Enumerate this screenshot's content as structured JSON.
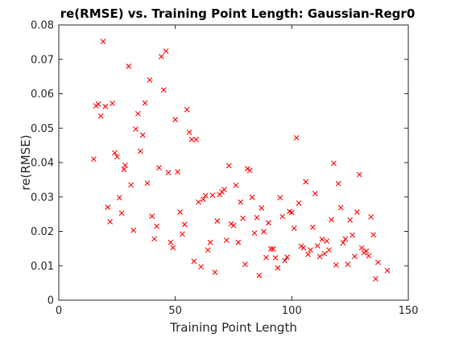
{
  "chart_data": {
    "type": "scatter",
    "title": "re(RMSE) vs. Training Point Length: Gaussian-Regr0",
    "xlabel": "Training Point Length",
    "ylabel": "re(RMSE)",
    "xlim": [
      0,
      150
    ],
    "ylim": [
      0,
      0.08
    ],
    "xticks": [
      0,
      50,
      100,
      150
    ],
    "yticks": [
      0,
      0.01,
      0.02,
      0.03,
      0.04,
      0.05,
      0.06,
      0.07,
      0.08
    ],
    "xtick_labels": [
      "0",
      "50",
      "100",
      "150"
    ],
    "ytick_labels": [
      "0",
      "0.01",
      "0.02",
      "0.03",
      "0.04",
      "0.05",
      "0.06",
      "0.07",
      "0.08"
    ],
    "grid": false,
    "legend": false,
    "marker": "x",
    "color": "#ff0000",
    "series": [
      {
        "points": [
          [
            15,
            0.041
          ],
          [
            16,
            0.0565
          ],
          [
            17,
            0.057
          ],
          [
            18,
            0.0535
          ],
          [
            19,
            0.0752
          ],
          [
            20,
            0.0563
          ],
          [
            21,
            0.027
          ],
          [
            22,
            0.0228
          ],
          [
            23,
            0.0572
          ],
          [
            24,
            0.0428
          ],
          [
            25,
            0.0417
          ],
          [
            26,
            0.0298
          ],
          [
            27,
            0.0253
          ],
          [
            28,
            0.038
          ],
          [
            28.5,
            0.0392
          ],
          [
            30,
            0.068
          ],
          [
            31,
            0.0335
          ],
          [
            32,
            0.0203
          ],
          [
            33,
            0.0497
          ],
          [
            34,
            0.0542
          ],
          [
            35,
            0.0433
          ],
          [
            36,
            0.048
          ],
          [
            37,
            0.0573
          ],
          [
            38,
            0.034
          ],
          [
            39,
            0.064
          ],
          [
            40,
            0.0244
          ],
          [
            41,
            0.0178
          ],
          [
            42,
            0.0215
          ],
          [
            43,
            0.0385
          ],
          [
            44,
            0.0708
          ],
          [
            45,
            0.0611
          ],
          [
            46,
            0.0724
          ],
          [
            47,
            0.0371
          ],
          [
            48,
            0.0168
          ],
          [
            49,
            0.0153
          ],
          [
            50,
            0.0525
          ],
          [
            51,
            0.0373
          ],
          [
            52,
            0.0256
          ],
          [
            53,
            0.0192
          ],
          [
            54,
            0.022
          ],
          [
            55,
            0.0554
          ],
          [
            56,
            0.0488
          ],
          [
            57,
            0.0467
          ],
          [
            58,
            0.0113
          ],
          [
            59,
            0.0467
          ],
          [
            60,
            0.0285
          ],
          [
            61,
            0.0097
          ],
          [
            62,
            0.0293
          ],
          [
            63,
            0.0304
          ],
          [
            64,
            0.0146
          ],
          [
            65,
            0.0168
          ],
          [
            66,
            0.0305
          ],
          [
            67,
            0.0081
          ],
          [
            68,
            0.023
          ],
          [
            69,
            0.0307
          ],
          [
            70,
            0.0315
          ],
          [
            71,
            0.0322
          ],
          [
            72,
            0.0174
          ],
          [
            73,
            0.0391
          ],
          [
            74,
            0.0222
          ],
          [
            75,
            0.0217
          ],
          [
            76,
            0.0334
          ],
          [
            77,
            0.0168
          ],
          [
            78,
            0.0285
          ],
          [
            79,
            0.0238
          ],
          [
            80,
            0.0104
          ],
          [
            81,
            0.0382
          ],
          [
            82,
            0.0377
          ],
          [
            83,
            0.0299
          ],
          [
            84,
            0.0195
          ],
          [
            85,
            0.024
          ],
          [
            86,
            0.0072
          ],
          [
            87,
            0.0268
          ],
          [
            88,
            0.0199
          ],
          [
            89,
            0.0124
          ],
          [
            90,
            0.0225
          ],
          [
            91,
            0.0149
          ],
          [
            92,
            0.0149
          ],
          [
            93,
            0.0123
          ],
          [
            94,
            0.0094
          ],
          [
            95,
            0.0298
          ],
          [
            96,
            0.0243
          ],
          [
            97,
            0.0115
          ],
          [
            98,
            0.0125
          ],
          [
            99,
            0.0258
          ],
          [
            100,
            0.0255
          ],
          [
            101,
            0.0209
          ],
          [
            102,
            0.0472
          ],
          [
            103,
            0.0282
          ],
          [
            104,
            0.0157
          ],
          [
            105,
            0.0152
          ],
          [
            106,
            0.0344
          ],
          [
            107,
            0.0133
          ],
          [
            108,
            0.0146
          ],
          [
            109,
            0.0212
          ],
          [
            110,
            0.031
          ],
          [
            111,
            0.0158
          ],
          [
            112,
            0.0127
          ],
          [
            113,
            0.0177
          ],
          [
            114,
            0.0135
          ],
          [
            115,
            0.0172
          ],
          [
            116,
            0.0146
          ],
          [
            117,
            0.0234
          ],
          [
            118,
            0.0398
          ],
          [
            119,
            0.0102
          ],
          [
            120,
            0.0339
          ],
          [
            121,
            0.0269
          ],
          [
            122,
            0.0167
          ],
          [
            123,
            0.0178
          ],
          [
            124,
            0.0104
          ],
          [
            125,
            0.0233
          ],
          [
            126,
            0.0189
          ],
          [
            127,
            0.0127
          ],
          [
            128,
            0.0256
          ],
          [
            129,
            0.0365
          ],
          [
            130,
            0.0152
          ],
          [
            131,
            0.0138
          ],
          [
            132,
            0.0143
          ],
          [
            133,
            0.0129
          ],
          [
            134,
            0.0242
          ],
          [
            135,
            0.019
          ],
          [
            136,
            0.0062
          ],
          [
            137,
            0.011
          ],
          [
            141,
            0.0086
          ]
        ]
      }
    ]
  }
}
